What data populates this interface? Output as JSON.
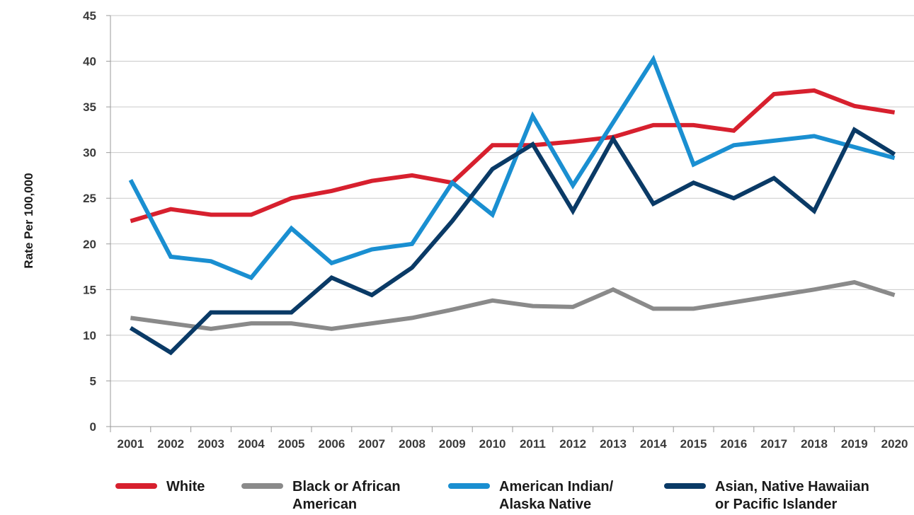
{
  "chart_data": {
    "type": "line",
    "title": "",
    "xlabel": "",
    "ylabel": "Rate Per 100,000",
    "ylim": [
      0,
      45
    ],
    "yticks": [
      0,
      5,
      10,
      15,
      20,
      25,
      30,
      35,
      40,
      45
    ],
    "categories": [
      "2001",
      "2002",
      "2003",
      "2004",
      "2005",
      "2006",
      "2007",
      "2008",
      "2009",
      "2010",
      "2011",
      "2012",
      "2013",
      "2014",
      "2015",
      "2016",
      "2017",
      "2018",
      "2019",
      "2020"
    ],
    "grid": true,
    "legend_position": "bottom",
    "series": [
      {
        "name": "White",
        "legend_lines": [
          "White"
        ],
        "color": "#d7202e",
        "values": [
          22.5,
          23.8,
          23.2,
          23.2,
          25.0,
          25.8,
          26.9,
          27.5,
          26.7,
          30.8,
          30.8,
          31.2,
          31.7,
          33.0,
          33.0,
          32.4,
          36.4,
          36.8,
          35.1,
          34.4
        ]
      },
      {
        "name": "Black or African American",
        "legend_lines": [
          "Black or African",
          "American"
        ],
        "color": "#8a8a8a",
        "values": [
          11.9,
          11.3,
          10.7,
          11.3,
          11.3,
          10.7,
          11.3,
          11.9,
          12.8,
          13.8,
          13.2,
          13.1,
          15.0,
          12.9,
          12.9,
          13.6,
          14.3,
          15.0,
          15.8,
          14.4
        ]
      },
      {
        "name": "American Indian/ Alaska Native",
        "legend_lines": [
          "American Indian/",
          "Alaska Native"
        ],
        "color": "#1a8fd1",
        "values": [
          27.0,
          18.6,
          18.1,
          16.3,
          21.7,
          17.9,
          19.4,
          20.0,
          26.7,
          23.2,
          34.0,
          26.4,
          33.3,
          40.2,
          28.7,
          30.8,
          31.3,
          31.8,
          30.6,
          29.4
        ]
      },
      {
        "name": "Asian, Native Hawaiian or Pacific Islander",
        "legend_lines": [
          "Asian, Native Hawaiian",
          "or Pacific Islander"
        ],
        "color": "#0a3a66",
        "values": [
          10.8,
          8.1,
          12.5,
          12.5,
          12.5,
          16.3,
          14.4,
          17.4,
          22.5,
          28.2,
          30.9,
          23.6,
          31.5,
          24.4,
          26.7,
          25.0,
          27.2,
          23.6,
          32.5,
          29.8
        ]
      }
    ]
  }
}
